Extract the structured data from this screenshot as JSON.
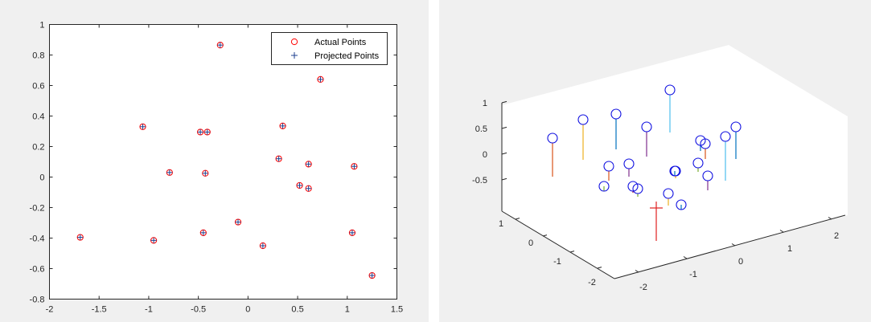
{
  "chart_data": [
    {
      "type": "scatter",
      "title": "",
      "xlabel": "",
      "ylabel": "",
      "xlim": [
        -2,
        1.5
      ],
      "ylim": [
        -0.8,
        1
      ],
      "xticks": [
        "-2",
        "-1.5",
        "-1",
        "-0.5",
        "0",
        "0.5",
        "1",
        "1.5"
      ],
      "yticks": [
        "1",
        "0.8",
        "0.6",
        "0.4",
        "0.2",
        "0",
        "-0.2",
        "-0.4",
        "-0.6",
        "-0.8"
      ],
      "grid": false,
      "legend_position": "top-right",
      "legend": [
        "Actual Points",
        "Projected Points"
      ],
      "series": [
        {
          "name": "Actual Points",
          "marker": "circle",
          "color": "#ff0000",
          "x": [
            -0.28,
            0.73,
            -1.06,
            -0.48,
            -0.41,
            0.35,
            -0.79,
            -0.43,
            0.31,
            0.61,
            1.07,
            0.52,
            0.61,
            -1.69,
            -0.95,
            -0.45,
            -0.1,
            0.15,
            1.05,
            1.25
          ],
          "y": [
            0.865,
            0.64,
            0.33,
            0.295,
            0.295,
            0.335,
            0.03,
            0.025,
            0.12,
            0.085,
            0.07,
            -0.055,
            -0.075,
            -0.395,
            -0.415,
            -0.365,
            -0.295,
            -0.45,
            -0.365,
            -0.645
          ]
        },
        {
          "name": "Projected Points",
          "marker": "plus",
          "color": "#1c3f8f",
          "x": [
            -0.28,
            0.73,
            -1.06,
            -0.48,
            -0.41,
            0.35,
            -0.79,
            -0.43,
            0.31,
            0.61,
            1.07,
            0.52,
            0.61,
            -1.69,
            -0.95,
            -0.45,
            -0.1,
            0.15,
            1.05,
            1.25
          ],
          "y": [
            0.865,
            0.64,
            0.33,
            0.295,
            0.295,
            0.335,
            0.03,
            0.025,
            0.12,
            0.085,
            0.07,
            -0.055,
            -0.075,
            -0.395,
            -0.415,
            -0.365,
            -0.295,
            -0.45,
            -0.365,
            -0.645
          ]
        }
      ]
    },
    {
      "type": "scatter3d-stem",
      "title": "",
      "zticks": [
        "1",
        "0.5",
        "0",
        "-0.5"
      ],
      "yticks": [
        "1",
        "0",
        "-1",
        "-2"
      ],
      "xticks": [
        "-2",
        "-1",
        "0",
        "1",
        "2"
      ],
      "grid": false,
      "stem_colors": [
        "#0072bd",
        "#d95319",
        "#edb120",
        "#7e2f8e",
        "#77ac30",
        "#4dbeee",
        "#a2142f"
      ],
      "cross_color": "#e02020"
    }
  ]
}
